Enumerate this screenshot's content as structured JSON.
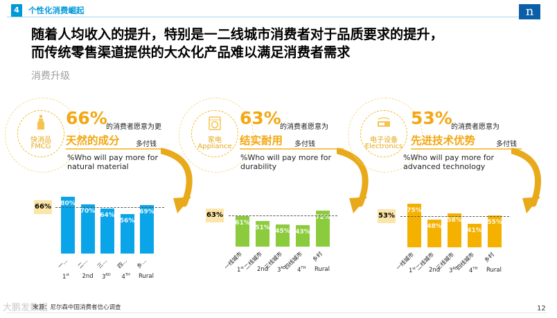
{
  "header": {
    "section_number": "4",
    "section_title": "个性化消费崛起",
    "logo": "n"
  },
  "headline": {
    "line1": "随着人均收入的提升，特别是一二线城市消费者对于品质要求的提升，",
    "line2": "而传统零售渠道提供的大众化产品难以满足消费者需求"
  },
  "subhead": "消费升级",
  "categories": [
    {
      "name_cn": "快消品",
      "name_en": "FMCG",
      "percent": "66%",
      "phrase_pre": "的消费者愿意为更",
      "phrase_key": "天然的成分",
      "phrase_post": "多付钱",
      "en_line1": "%Who will pay more for",
      "en_line2": "natural material",
      "avg_label": "66%",
      "color": "#0aa5e8",
      "icon": "bottle-icon"
    },
    {
      "name_cn": "家电",
      "name_en": "Appliance",
      "percent": "63%",
      "phrase_pre": "的消费者愿意为",
      "phrase_key": "结实耐用",
      "phrase_post": "多付钱",
      "en_line1": "%Who will pay more for",
      "en_line2": "durability",
      "avg_label": "63%",
      "color": "#8ccb3e",
      "icon": "washing-machine-icon"
    },
    {
      "name_cn": "电子设备",
      "name_en": "Electronics",
      "percent": "53%",
      "phrase_pre": "的消费者愿意为",
      "phrase_key": "先进技术优势",
      "phrase_post": "多付钱",
      "en_line1": "%Who will pay more for",
      "en_line2": "advanced technology",
      "avg_label": "53%",
      "color": "#f5b100",
      "icon": "device-icon"
    }
  ],
  "chart_data": [
    {
      "type": "bar",
      "title": "快消品 FMCG",
      "categories": [
        "一...",
        "二...",
        "三...",
        "四...",
        "乡..."
      ],
      "tiers": [
        "1st",
        "2nd",
        "3RD",
        "4TH",
        "Rural"
      ],
      "values": [
        80,
        70,
        64,
        56,
        69
      ],
      "value_labels": [
        "80%",
        "70%",
        "64%",
        "56%",
        "69%"
      ],
      "average": 66,
      "ylim": [
        0,
        100
      ]
    },
    {
      "type": "bar",
      "title": "家电 Appliance",
      "categories": [
        "一线城市",
        "二线城市",
        "三线城市",
        "四线城市",
        "乡村"
      ],
      "tiers": [
        "1st",
        "2nd",
        "3RD",
        "4TH",
        "Rural"
      ],
      "values": [
        61,
        51,
        45,
        43,
        72
      ],
      "value_labels": [
        "61%",
        "51%",
        "45%",
        "43%",
        "72%"
      ],
      "average": 63,
      "ylim": [
        0,
        100
      ]
    },
    {
      "type": "bar",
      "title": "电子设备 Electronics",
      "categories": [
        "一线城市",
        "二线城市",
        "三线城市",
        "四线城市",
        "乡村"
      ],
      "tiers": [
        "1st",
        "2nd",
        "3RD",
        "4TH",
        "Rural"
      ],
      "values": [
        75,
        48,
        58,
        41,
        55
      ],
      "value_labels": [
        "75%",
        "48%",
        "58%",
        "41%",
        "55%"
      ],
      "average": 53,
      "ylim": [
        0,
        100
      ]
    }
  ],
  "footer": {
    "source": "来源：尼尔森中国消费者信心调查",
    "watermark": "大鹏发数据",
    "page_number": "12"
  }
}
